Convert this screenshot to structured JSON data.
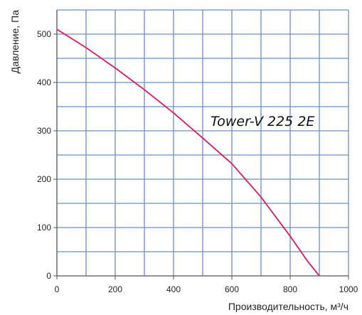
{
  "chart_data": {
    "type": "line",
    "title": "",
    "xlabel": "Производительность, м³/ч",
    "ylabel": "Давление, Па",
    "xlim": [
      0,
      1000
    ],
    "ylim": [
      0,
      550
    ],
    "x_ticks": [
      0,
      200,
      400,
      600,
      800,
      1000
    ],
    "y_ticks": [
      0,
      100,
      200,
      300,
      400,
      500
    ],
    "x_grid": [
      0,
      100,
      200,
      300,
      400,
      500,
      600,
      700,
      800,
      900,
      1000
    ],
    "y_grid": [
      0,
      50,
      100,
      150,
      200,
      250,
      300,
      350,
      400,
      450,
      500,
      550
    ],
    "grid": true,
    "grid_color": "#6b8ec6",
    "axis_color": "#555555",
    "annotation": "Tower-V 225 2E",
    "series": [
      {
        "color": "#e0185e",
        "x": [
          0,
          100,
          200,
          300,
          400,
          500,
          600,
          700,
          800,
          860,
          900
        ],
        "y": [
          510,
          472,
          430,
          385,
          337,
          285,
          232,
          163,
          82,
          30,
          0
        ]
      }
    ]
  }
}
